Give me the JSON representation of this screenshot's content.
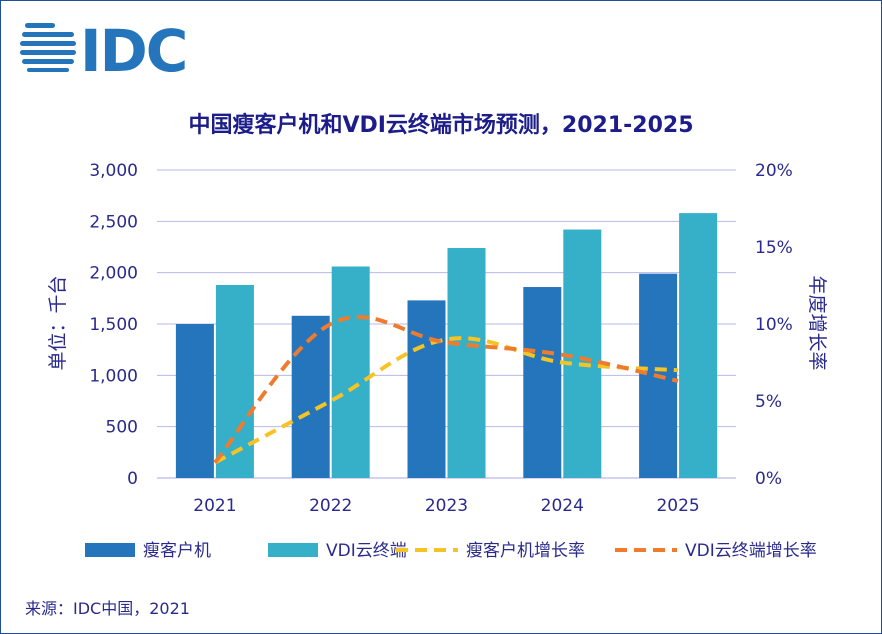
{
  "logo": {
    "text": "IDC"
  },
  "chart_data": {
    "type": "bar",
    "title": "中国瘦客户机和VDI云终端市场预测，2021-2025",
    "categories": [
      "2021",
      "2022",
      "2023",
      "2024",
      "2025"
    ],
    "series": [
      {
        "name": "瘦客户机",
        "kind": "bar",
        "axis": "left",
        "color": "#2475bb",
        "values": [
          1500,
          1580,
          1730,
          1860,
          1990
        ]
      },
      {
        "name": "VDI云终端",
        "kind": "bar",
        "axis": "left",
        "color": "#36afc8",
        "values": [
          1880,
          2060,
          2240,
          2420,
          2580
        ]
      },
      {
        "name": "瘦客户机增长率",
        "kind": "line",
        "axis": "right",
        "color": "#f6c324",
        "dashed": true,
        "values": [
          1,
          5,
          9,
          7.5,
          7
        ]
      },
      {
        "name": "VDI云终端增长率",
        "kind": "line",
        "axis": "right",
        "color": "#ef7c2e",
        "dashed": true,
        "values": [
          1,
          10,
          8.8,
          8,
          6.3
        ]
      }
    ],
    "ylabel": "单位：千台",
    "y2label": "年度增长率",
    "ylim": [
      0,
      3000
    ],
    "y2lim": [
      0,
      20
    ],
    "yticks": [
      "0",
      "500",
      "1,000",
      "1,500",
      "2,000",
      "2,500",
      "3,000"
    ],
    "y2ticks": [
      "0%",
      "5%",
      "10%",
      "15%",
      "20%"
    ],
    "grid": true,
    "legend": "bottom"
  },
  "source": "来源：IDC中国，2021",
  "colors": {
    "axis_text": "#2a2a8c",
    "title": "#1c1c8a",
    "grid": "#b8b8ee",
    "frame": "#1f4e9b",
    "logo": "#2475bb"
  }
}
